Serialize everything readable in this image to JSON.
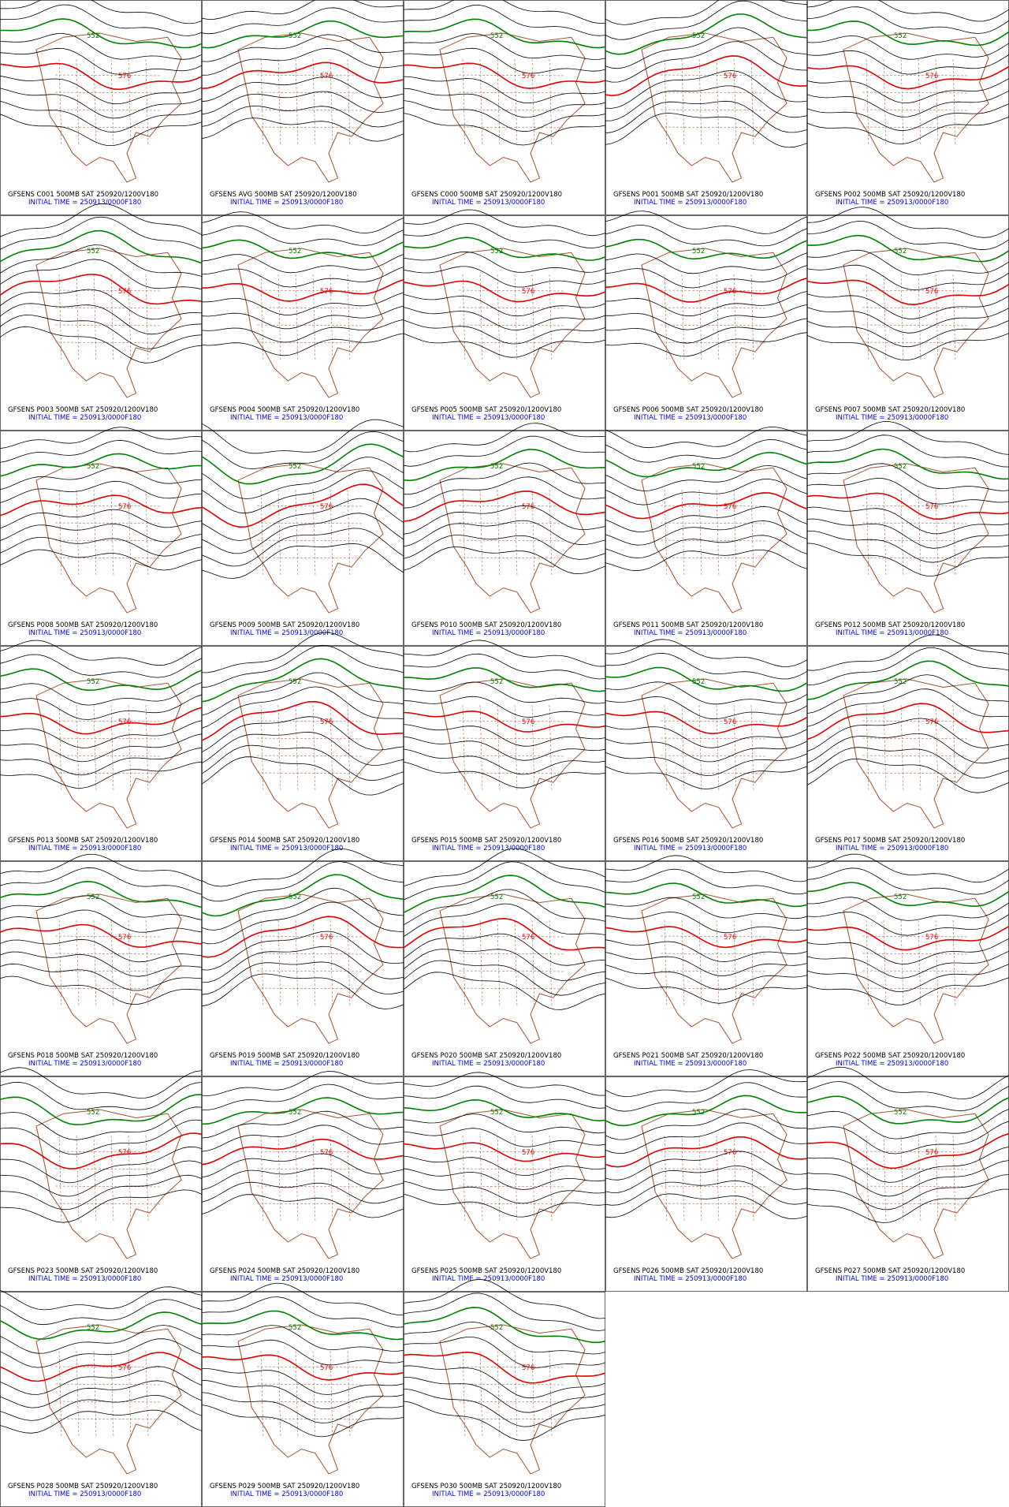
{
  "panels": [
    {
      "caption": "GFSENS C001 500MB SAT 250920/1200V180",
      "initial_time": "INITIAL TIME = 250913/0000F180",
      "contour_labels": [
        "552",
        "576"
      ]
    },
    {
      "caption": "GFSENS AVG 500MB SAT 250920/1200V180",
      "initial_time": "INITIAL TIME = 250913/0000F180",
      "contour_labels": [
        "552",
        "576"
      ]
    },
    {
      "caption": "GFSENS C000 500MB SAT 250920/1200V180",
      "initial_time": "INITIAL TIME = 250913/0000F180",
      "contour_labels": [
        "552",
        "576"
      ]
    },
    {
      "caption": "GFSENS P001 500MB SAT 250920/1200V180",
      "initial_time": "INITIAL TIME = 250913/0000F180",
      "contour_labels": [
        "552",
        "576"
      ]
    },
    {
      "caption": "GFSENS P002 500MB SAT 250920/1200V180",
      "initial_time": "INITIAL TIME = 250913/0000F180",
      "contour_labels": [
        "552",
        "576"
      ]
    },
    {
      "caption": "GFSENS P003 500MB SAT 250920/1200V180",
      "initial_time": "INITIAL TIME = 250913/0000F180",
      "contour_labels": [
        "552",
        "576"
      ]
    },
    {
      "caption": "GFSENS P004 500MB SAT 250920/1200V180",
      "initial_time": "INITIAL TIME = 250913/0000F180",
      "contour_labels": [
        "552",
        "576"
      ]
    },
    {
      "caption": "GFSENS P005 500MB SAT 250920/1200V180",
      "initial_time": "INITIAL TIME = 250913/0000F180",
      "contour_labels": [
        "552",
        "576"
      ]
    },
    {
      "caption": "GFSENS P006 500MB SAT 250920/1200V180",
      "initial_time": "INITIAL TIME = 250913/0000F180",
      "contour_labels": [
        "552",
        "576"
      ]
    },
    {
      "caption": "GFSENS P007 500MB SAT 250920/1200V180",
      "initial_time": "INITIAL TIME = 250913/0000F180",
      "contour_labels": [
        "552",
        "576"
      ]
    },
    {
      "caption": "GFSENS P008 500MB SAT 250920/1200V180",
      "initial_time": "INITIAL TIME = 250913/0000F180",
      "contour_labels": [
        "552",
        "576"
      ]
    },
    {
      "caption": "GFSENS P009 500MB SAT 250920/1200V180",
      "initial_time": "INITIAL TIME = 250913/0000F180",
      "contour_labels": [
        "552",
        "576"
      ]
    },
    {
      "caption": "GFSENS P010 500MB SAT 250920/1200V180",
      "initial_time": "INITIAL TIME = 250913/0000F180",
      "contour_labels": [
        "552",
        "576"
      ]
    },
    {
      "caption": "GFSENS P011 500MB SAT 250920/1200V180",
      "initial_time": "INITIAL TIME = 250913/0000F180",
      "contour_labels": [
        "552",
        "576"
      ]
    },
    {
      "caption": "GFSENS P012 500MB SAT 250920/1200V180",
      "initial_time": "INITIAL TIME = 250913/0000F180",
      "contour_labels": [
        "552",
        "576"
      ]
    },
    {
      "caption": "GFSENS P013 500MB SAT 250920/1200V180",
      "initial_time": "INITIAL TIME = 250913/0000F180",
      "contour_labels": [
        "552",
        "576"
      ]
    },
    {
      "caption": "GFSENS P014 500MB SAT 250920/1200V180",
      "initial_time": "INITIAL TIME = 250913/0000F180",
      "contour_labels": [
        "552",
        "576"
      ]
    },
    {
      "caption": "GFSENS P015 500MB SAT 250920/1200V180",
      "initial_time": "INITIAL TIME = 250913/0000F180",
      "contour_labels": [
        "552",
        "576"
      ]
    },
    {
      "caption": "GFSENS P016 500MB SAT 250920/1200V180",
      "initial_time": "INITIAL TIME = 250913/0000F180",
      "contour_labels": [
        "552",
        "576"
      ]
    },
    {
      "caption": "GFSENS P017 500MB SAT 250920/1200V180",
      "initial_time": "INITIAL TIME = 250913/0000F180",
      "contour_labels": [
        "552",
        "576"
      ]
    },
    {
      "caption": "GFSENS P018 500MB SAT 250920/1200V180",
      "initial_time": "INITIAL TIME = 250913/0000F180",
      "contour_labels": [
        "552",
        "576"
      ]
    },
    {
      "caption": "GFSENS P019 500MB SAT 250920/1200V180",
      "initial_time": "INITIAL TIME = 250913/0000F180",
      "contour_labels": [
        "552",
        "576"
      ]
    },
    {
      "caption": "GFSENS P020 500MB SAT 250920/1200V180",
      "initial_time": "INITIAL TIME = 250913/0000F180",
      "contour_labels": [
        "552",
        "576"
      ]
    },
    {
      "caption": "GFSENS P021 500MB SAT 250920/1200V180",
      "initial_time": "INITIAL TIME = 250913/0000F180",
      "contour_labels": [
        "552",
        "576"
      ]
    },
    {
      "caption": "GFSENS P022 500MB SAT 250920/1200V180",
      "initial_time": "INITIAL TIME = 250913/0000F180",
      "contour_labels": [
        "552",
        "576"
      ]
    },
    {
      "caption": "GFSENS P023 500MB SAT 250920/1200V180",
      "initial_time": "INITIAL TIME = 250913/0000F180",
      "contour_labels": [
        "552",
        "576"
      ]
    },
    {
      "caption": "GFSENS P024 500MB SAT 250920/1200V180",
      "initial_time": "INITIAL TIME = 250913/0000F180",
      "contour_labels": [
        "552",
        "576"
      ]
    },
    {
      "caption": "GFSENS P025 500MB SAT 250920/1200V180",
      "initial_time": "INITIAL TIME = 250913/0000F180",
      "contour_labels": [
        "552",
        "576"
      ]
    },
    {
      "caption": "GFSENS P026 500MB SAT 250920/1200V180",
      "initial_time": "INITIAL TIME = 250913/0000F180",
      "contour_labels": [
        "552",
        "576"
      ]
    },
    {
      "caption": "GFSENS P027 500MB SAT 250920/1200V180",
      "initial_time": "INITIAL TIME = 250913/0000F180",
      "contour_labels": [
        "552",
        "576"
      ]
    },
    {
      "caption": "GFSENS P028 500MB SAT 250920/1200V180",
      "initial_time": "INITIAL TIME = 250913/0000F180",
      "contour_labels": [
        "552",
        "576"
      ]
    },
    {
      "caption": "GFSENS P029 500MB SAT 250920/1200V180",
      "initial_time": "INITIAL TIME = 250913/0000F180",
      "contour_labels": [
        "552",
        "576"
      ]
    },
    {
      "caption": "GFSENS P030 500MB SAT 250920/1200V180",
      "initial_time": "INITIAL TIME = 250913/0000F180",
      "contour_labels": [
        "552",
        "576"
      ]
    }
  ]
}
